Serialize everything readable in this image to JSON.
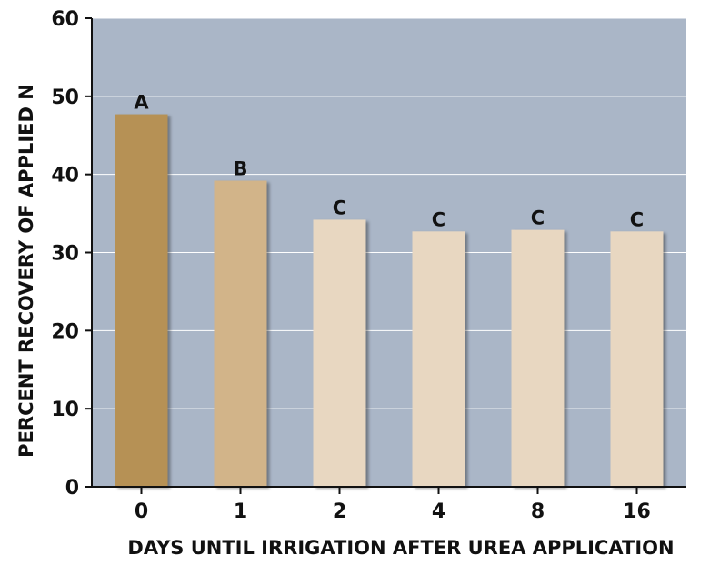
{
  "chart_data": {
    "type": "bar",
    "title": "",
    "xlabel": "DAYS UNTIL IRRIGATION AFTER UREA APPLICATION",
    "ylabel": "PERCENT RECOVERY OF APPLIED N",
    "categories": [
      "0",
      "1",
      "2",
      "4",
      "8",
      "16"
    ],
    "values": [
      47.7,
      39.2,
      34.2,
      32.7,
      32.9,
      32.7
    ],
    "data_labels": [
      "A",
      "B",
      "C",
      "C",
      "C",
      "C"
    ],
    "ylim": [
      0,
      60
    ],
    "yticks": [
      0,
      10,
      20,
      30,
      40,
      50,
      60
    ],
    "grid": true,
    "colors": {
      "plot_background": "#aab6c7",
      "grid": "#ffffff",
      "bars": [
        "#b69155",
        "#d2b489",
        "#e8d7c1",
        "#e8d7c1",
        "#e8d7c1",
        "#e8d7c1"
      ],
      "axis": "#111111"
    }
  }
}
